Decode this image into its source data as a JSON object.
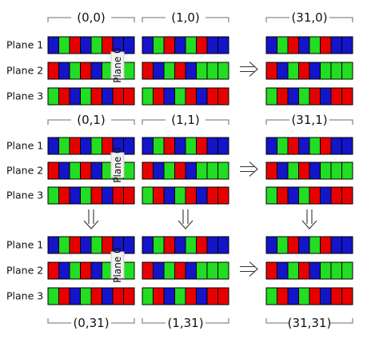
{
  "plane_labels": [
    "Plane 1",
    "Plane 2",
    "Plane 3"
  ],
  "plane0_label": "Plane 0",
  "coords": [
    "(0,0)",
    "(1,0)",
    "(31,0)",
    "(0,1)",
    "(1,1)",
    "(31,1)",
    "(0,31)",
    "(1,31)",
    "(31,31)"
  ],
  "colors": {
    "red": "#e80000",
    "green": "#22dd22",
    "blue": "#1414c8",
    "white": "#ffffff"
  },
  "plane_patterns": [
    [
      "blue",
      "green",
      "red",
      "blue",
      "green",
      "red",
      "blue",
      "blue"
    ],
    [
      "red",
      "blue",
      "green",
      "red",
      "blue",
      "green",
      "green",
      "green"
    ],
    [
      "green",
      "red",
      "blue",
      "green",
      "red",
      "blue",
      "red",
      "red"
    ]
  ],
  "arrow_icons": {
    "right": "right-arrow-icon",
    "down": "down-arrow-icon"
  }
}
